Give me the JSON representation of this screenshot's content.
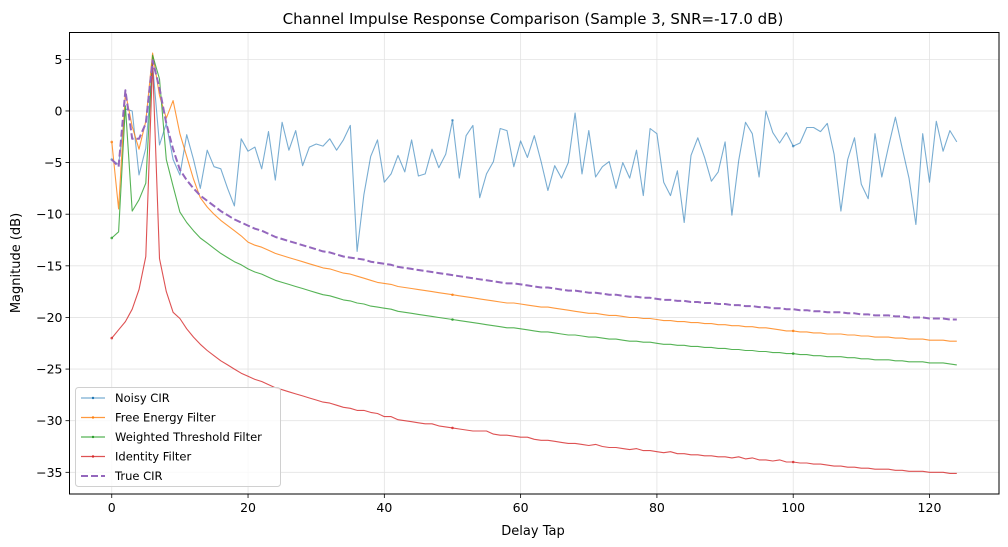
{
  "chart_data": {
    "type": "line",
    "title": "Channel Impulse Response Comparison (Sample 3, SNR=-17.0 dB)",
    "xlabel": "Delay Tap",
    "ylabel": "Magnitude (dB)",
    "xlim": [
      -6.2,
      130.2
    ],
    "ylim": [
      -37.1,
      7.6
    ],
    "xticks": [
      0,
      20,
      40,
      60,
      80,
      100,
      120
    ],
    "xtick_labels": [
      "0",
      "20",
      "40",
      "60",
      "80",
      "100",
      "120"
    ],
    "yticks": [
      5,
      0,
      -5,
      -10,
      -15,
      -20,
      -25,
      -30,
      -35
    ],
    "ytick_labels": [
      "5",
      "0",
      "−5",
      "−10",
      "−15",
      "−20",
      "−25",
      "−30",
      "−35"
    ],
    "grid": true,
    "legend_position": "lower-left",
    "x_start": 0,
    "x_step": 1,
    "series": [
      {
        "name": "Noisy CIR",
        "color": "#1f77b4",
        "style": "solid",
        "values": [
          -4.7,
          -5.2,
          0.2,
          0.0,
          -6.2,
          -3.6,
          4.5,
          -3.3,
          -1.2,
          -4.7,
          -6.2,
          -2.3,
          -4.7,
          -7.5,
          -3.8,
          -5.4,
          -5.6,
          -7.5,
          -9.2,
          -2.7,
          -3.9,
          -3.5,
          -5.6,
          -2.0,
          -6.7,
          -1.1,
          -3.8,
          -1.9,
          -5.3,
          -3.5,
          -3.2,
          -3.4,
          -2.7,
          -3.8,
          -2.8,
          -1.4,
          -13.6,
          -8.1,
          -4.4,
          -2.8,
          -6.9,
          -6.1,
          -4.3,
          -5.9,
          -2.8,
          -6.3,
          -6.1,
          -3.7,
          -5.5,
          -4.2,
          -0.9,
          -6.5,
          -2.4,
          -1.4,
          -8.4,
          -6.1,
          -4.9,
          -1.7,
          -1.9,
          -5.4,
          -2.9,
          -4.5,
          -2.4,
          -4.9,
          -7.7,
          -5.3,
          -6.5,
          -5.0,
          -0.2,
          -6.1,
          -1.9,
          -6.4,
          -5.4,
          -4.9,
          -7.5,
          -5.0,
          -6.5,
          -3.8,
          -8.2,
          -1.7,
          -2.2,
          -6.9,
          -8.2,
          -5.8,
          -10.8,
          -4.3,
          -2.6,
          -4.5,
          -6.8,
          -5.9,
          -3.0,
          -10.1,
          -4.8,
          -1.1,
          -2.2,
          -6.4,
          0.0,
          -2.1,
          -3.1,
          -2.1,
          -3.4,
          -3.1,
          -1.6,
          -1.6,
          -2.0,
          -1.2,
          -4.2,
          -9.7,
          -4.7,
          -2.6,
          -7.1,
          -8.5,
          -2.2,
          -6.4,
          -3.4,
          -0.6,
          -3.6,
          -6.5,
          -11.0,
          -2.2,
          -6.9,
          -1.0,
          -3.9,
          -1.9,
          -3.0
        ]
      },
      {
        "name": "Free Energy Filter",
        "color": "#ff7f0e",
        "style": "solid",
        "values": [
          -3.0,
          -9.5,
          1.8,
          -1.5,
          -3.7,
          -1.0,
          5.6,
          1.5,
          -0.7,
          1.0,
          -2.2,
          -4.4,
          -6.6,
          -8.4,
          -9.3,
          -10.0,
          -10.6,
          -11.1,
          -11.6,
          -12.1,
          -12.7,
          -13.0,
          -13.2,
          -13.5,
          -13.8,
          -14.0,
          -14.2,
          -14.4,
          -14.6,
          -14.8,
          -15.0,
          -15.2,
          -15.3,
          -15.5,
          -15.7,
          -15.8,
          -16.0,
          -16.2,
          -16.4,
          -16.6,
          -16.7,
          -16.8,
          -17.0,
          -17.1,
          -17.2,
          -17.3,
          -17.4,
          -17.5,
          -17.6,
          -17.7,
          -17.8,
          -17.9,
          -18.0,
          -18.1,
          -18.2,
          -18.3,
          -18.4,
          -18.5,
          -18.6,
          -18.6,
          -18.7,
          -18.8,
          -18.9,
          -19.0,
          -19.0,
          -19.1,
          -19.2,
          -19.3,
          -19.4,
          -19.5,
          -19.6,
          -19.6,
          -19.7,
          -19.8,
          -19.8,
          -19.9,
          -20.0,
          -20.0,
          -20.1,
          -20.1,
          -20.2,
          -20.3,
          -20.3,
          -20.4,
          -20.4,
          -20.5,
          -20.5,
          -20.6,
          -20.6,
          -20.7,
          -20.7,
          -20.8,
          -20.8,
          -20.9,
          -20.9,
          -21.0,
          -21.0,
          -21.1,
          -21.2,
          -21.3,
          -21.3,
          -21.4,
          -21.4,
          -21.5,
          -21.5,
          -21.6,
          -21.6,
          -21.6,
          -21.7,
          -21.7,
          -21.8,
          -21.8,
          -21.9,
          -21.9,
          -21.9,
          -22.0,
          -22.0,
          -22.1,
          -22.1,
          -22.1,
          -22.2,
          -22.2,
          -22.2,
          -22.3,
          -22.3
        ]
      },
      {
        "name": "Weighted Threshold Filter",
        "color": "#2ca02c",
        "style": "solid",
        "values": [
          -12.3,
          -11.7,
          0.5,
          -9.7,
          -8.6,
          -7.0,
          5.4,
          3.1,
          -4.7,
          -7.3,
          -9.8,
          -10.8,
          -11.6,
          -12.3,
          -12.8,
          -13.3,
          -13.8,
          -14.2,
          -14.6,
          -14.9,
          -15.3,
          -15.6,
          -15.8,
          -16.1,
          -16.4,
          -16.6,
          -16.8,
          -17.0,
          -17.2,
          -17.4,
          -17.6,
          -17.8,
          -17.9,
          -18.1,
          -18.3,
          -18.4,
          -18.6,
          -18.7,
          -18.9,
          -19.0,
          -19.1,
          -19.2,
          -19.4,
          -19.5,
          -19.6,
          -19.7,
          -19.8,
          -19.9,
          -20.0,
          -20.1,
          -20.2,
          -20.3,
          -20.4,
          -20.5,
          -20.6,
          -20.7,
          -20.8,
          -20.9,
          -21.0,
          -21.0,
          -21.1,
          -21.2,
          -21.3,
          -21.4,
          -21.4,
          -21.5,
          -21.6,
          -21.7,
          -21.7,
          -21.8,
          -21.9,
          -21.9,
          -22.0,
          -22.1,
          -22.1,
          -22.2,
          -22.3,
          -22.3,
          -22.4,
          -22.4,
          -22.5,
          -22.6,
          -22.6,
          -22.7,
          -22.7,
          -22.8,
          -22.8,
          -22.9,
          -22.9,
          -23.0,
          -23.0,
          -23.1,
          -23.1,
          -23.2,
          -23.2,
          -23.3,
          -23.3,
          -23.4,
          -23.4,
          -23.5,
          -23.5,
          -23.6,
          -23.6,
          -23.7,
          -23.7,
          -23.8,
          -23.8,
          -23.8,
          -23.9,
          -23.9,
          -24.0,
          -24.0,
          -24.1,
          -24.1,
          -24.1,
          -24.2,
          -24.2,
          -24.3,
          -24.3,
          -24.3,
          -24.4,
          -24.4,
          -24.4,
          -24.5,
          -24.6
        ]
      },
      {
        "name": "Identity Filter",
        "color": "#d62728",
        "style": "solid",
        "values": [
          -22.0,
          -21.2,
          -20.4,
          -19.2,
          -17.3,
          -14.1,
          4.7,
          -14.3,
          -17.5,
          -19.5,
          -20.1,
          -21.1,
          -21.9,
          -22.6,
          -23.2,
          -23.7,
          -24.2,
          -24.6,
          -25.0,
          -25.4,
          -25.7,
          -26.0,
          -26.2,
          -26.5,
          -26.8,
          -27.0,
          -27.2,
          -27.4,
          -27.6,
          -27.8,
          -28.0,
          -28.2,
          -28.3,
          -28.5,
          -28.7,
          -28.8,
          -29.0,
          -29.0,
          -29.2,
          -29.3,
          -29.6,
          -29.6,
          -29.9,
          -30.0,
          -30.1,
          -30.2,
          -30.3,
          -30.3,
          -30.5,
          -30.6,
          -30.7,
          -30.8,
          -30.9,
          -31.0,
          -31.0,
          -31.0,
          -31.3,
          -31.4,
          -31.4,
          -31.5,
          -31.6,
          -31.6,
          -31.8,
          -31.9,
          -31.9,
          -32.0,
          -32.1,
          -32.2,
          -32.2,
          -32.3,
          -32.4,
          -32.3,
          -32.5,
          -32.6,
          -32.6,
          -32.7,
          -32.8,
          -32.7,
          -32.9,
          -32.9,
          -33.0,
          -33.1,
          -33.0,
          -33.2,
          -33.2,
          -33.3,
          -33.3,
          -33.4,
          -33.4,
          -33.5,
          -33.5,
          -33.6,
          -33.5,
          -33.7,
          -33.6,
          -33.8,
          -33.8,
          -33.9,
          -33.8,
          -34.0,
          -34.0,
          -34.1,
          -34.1,
          -34.2,
          -34.2,
          -34.3,
          -34.4,
          -34.4,
          -34.5,
          -34.5,
          -34.6,
          -34.6,
          -34.7,
          -34.7,
          -34.7,
          -34.8,
          -34.8,
          -34.9,
          -34.9,
          -34.9,
          -35.0,
          -35.0,
          -35.0,
          -35.1,
          -35.1
        ]
      },
      {
        "name": "True CIR",
        "color": "#9467bd",
        "style": "dashed",
        "values": [
          -4.7,
          -5.4,
          2.0,
          -2.7,
          -2.7,
          -1.2,
          4.9,
          2.2,
          -1.2,
          -3.7,
          -5.7,
          -6.7,
          -7.5,
          -8.2,
          -8.7,
          -9.2,
          -9.7,
          -10.1,
          -10.5,
          -10.8,
          -11.1,
          -11.4,
          -11.6,
          -11.9,
          -12.2,
          -12.4,
          -12.6,
          -12.8,
          -13.0,
          -13.2,
          -13.4,
          -13.6,
          -13.7,
          -13.9,
          -14.1,
          -14.2,
          -14.3,
          -14.4,
          -14.6,
          -14.7,
          -14.8,
          -14.9,
          -15.1,
          -15.2,
          -15.3,
          -15.4,
          -15.5,
          -15.6,
          -15.7,
          -15.8,
          -15.9,
          -16.0,
          -16.1,
          -16.2,
          -16.3,
          -16.4,
          -16.5,
          -16.6,
          -16.7,
          -16.7,
          -16.8,
          -16.9,
          -17.0,
          -17.1,
          -17.1,
          -17.2,
          -17.3,
          -17.4,
          -17.4,
          -17.5,
          -17.6,
          -17.6,
          -17.7,
          -17.8,
          -17.8,
          -17.9,
          -18.0,
          -18.0,
          -18.1,
          -18.1,
          -18.2,
          -18.3,
          -18.3,
          -18.4,
          -18.4,
          -18.5,
          -18.5,
          -18.6,
          -18.6,
          -18.7,
          -18.7,
          -18.8,
          -18.8,
          -18.9,
          -18.9,
          -19.0,
          -19.0,
          -19.1,
          -19.1,
          -19.2,
          -19.2,
          -19.3,
          -19.3,
          -19.4,
          -19.4,
          -19.5,
          -19.5,
          -19.5,
          -19.6,
          -19.6,
          -19.7,
          -19.7,
          -19.8,
          -19.8,
          -19.8,
          -19.9,
          -19.9,
          -20.0,
          -20.0,
          -20.0,
          -20.1,
          -20.1,
          -20.1,
          -20.2,
          -20.2
        ]
      }
    ]
  }
}
